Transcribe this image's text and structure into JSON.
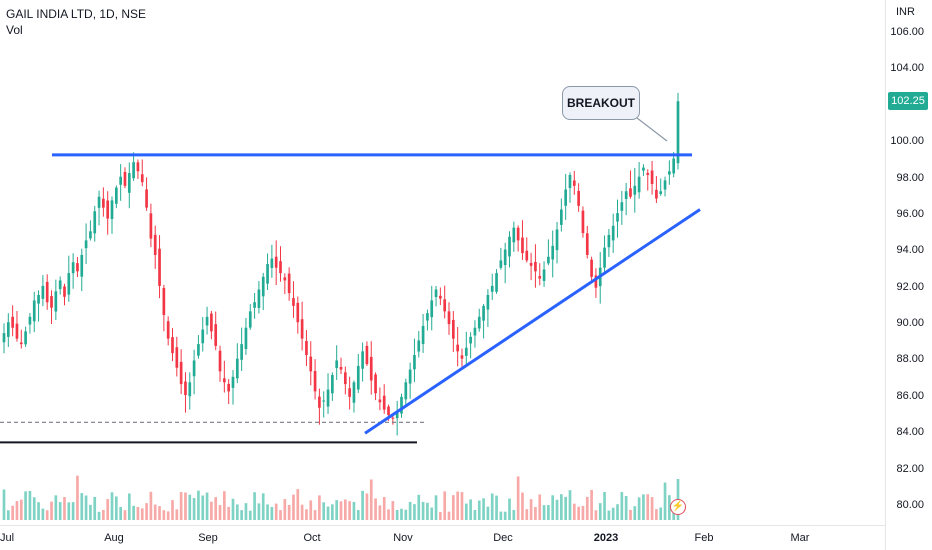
{
  "header": {
    "symbol": "GAIL INDIA LTD, 1D, NSE",
    "volume_label": "Vol"
  },
  "axis": {
    "unit": "INR",
    "current_price": "102.25"
  },
  "annotation": {
    "text": "BREAKOUT"
  },
  "colors": {
    "up": "#22ab94",
    "down": "#f23645",
    "up_vol": "#7fd3c4",
    "down_vol": "#f7a9a7",
    "trendline": "#2962ff",
    "support": "#131722",
    "dashed": "#787b86"
  },
  "chart_data": {
    "type": "candlestick",
    "title": "GAIL INDIA LTD, 1D, NSE",
    "ylabel": "INR",
    "ylim": [
      79.5,
      107.5
    ],
    "y_ticks": [
      "80.00",
      "82.00",
      "84.00",
      "86.00",
      "88.00",
      "90.00",
      "92.00",
      "94.00",
      "96.00",
      "98.00",
      "100.00",
      "102.00",
      "104.00",
      "106.00"
    ],
    "x_ticks": [
      "Jul",
      "Aug",
      "Sep",
      "Oct",
      "Nov",
      "Dec",
      "2023",
      "Feb",
      "Mar"
    ],
    "grid": false,
    "last_price": 102.25,
    "resistance_level": 99.3,
    "support_level": 83.5,
    "dashed_level": 84.6,
    "ascending_trendline": [
      [
        84.0,
        "Oct"
      ],
      [
        96.3,
        "Jan"
      ]
    ],
    "annotation": "BREAKOUT",
    "closes": [
      89.5,
      90.1,
      89.8,
      89.2,
      88.9,
      89.6,
      90.4,
      91.3,
      91.6,
      92.1,
      91.2,
      90.9,
      91.8,
      92.4,
      91.5,
      92.8,
      93.4,
      92.9,
      93.8,
      94.6,
      95.1,
      96.2,
      97.0,
      96.4,
      95.8,
      96.8,
      97.5,
      98.1,
      97.6,
      98.3,
      98.9,
      98.4,
      97.8,
      96.4,
      94.7,
      93.8,
      92.1,
      90.5,
      89.2,
      88.4,
      87.6,
      86.7,
      86.1,
      86.8,
      88.0,
      88.9,
      89.7,
      90.4,
      89.6,
      88.8,
      87.4,
      86.8,
      86.3,
      87.1,
      88.1,
      88.9,
      89.8,
      90.7,
      91.2,
      91.9,
      92.6,
      93.3,
      93.6,
      93.1,
      92.8,
      92.4,
      91.7,
      91.0,
      90.1,
      89.2,
      88.3,
      87.4,
      86.3,
      85.4,
      85.8,
      86.4,
      87.2,
      88.0,
      87.5,
      86.7,
      86.0,
      86.8,
      87.7,
      88.5,
      87.8,
      86.9,
      86.2,
      85.7,
      85.3,
      85.0,
      84.8,
      85.2,
      86.0,
      86.8,
      87.5,
      88.3,
      89.1,
      89.9,
      90.6,
      91.3,
      91.9,
      91.4,
      90.7,
      90.0,
      89.2,
      88.5,
      88.1,
      88.7,
      89.3,
      89.8,
      90.4,
      91.0,
      91.6,
      92.1,
      92.8,
      93.5,
      94.1,
      94.8,
      95.3,
      94.6,
      93.9,
      93.5,
      93.2,
      92.9,
      92.5,
      93.0,
      93.7,
      94.3,
      95.2,
      96.3,
      97.4,
      98.2,
      97.6,
      96.5,
      95.0,
      93.8,
      92.6,
      92.0,
      93.1,
      94.2,
      94.9,
      95.4,
      96.1,
      96.7,
      97.3,
      97.0,
      97.6,
      98.1,
      98.6,
      98.2,
      97.7,
      96.9,
      97.3,
      97.9,
      98.4,
      99.1,
      102.25
    ],
    "volume_note": "volume bars drawn under price series"
  }
}
